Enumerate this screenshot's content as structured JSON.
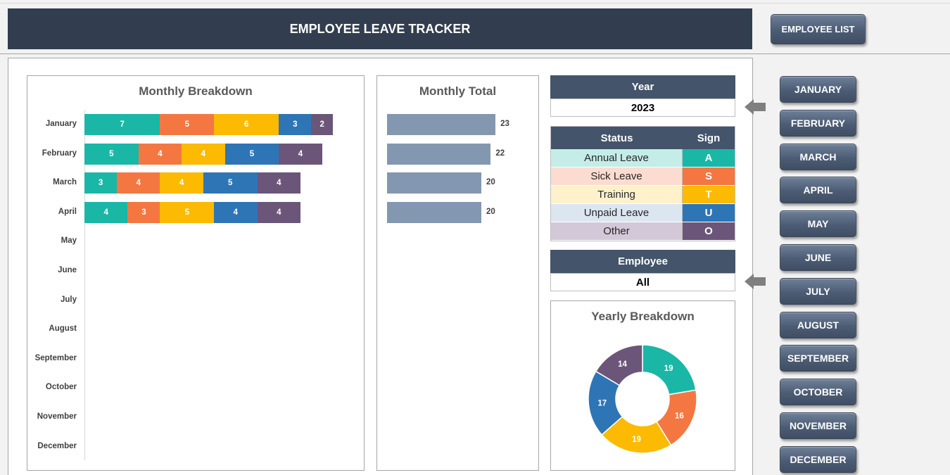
{
  "title": "EMPLOYEE LEAVE TRACKER",
  "employee_list_button": "EMPLOYEE LIST",
  "month_buttons": [
    "JANUARY",
    "FEBRUARY",
    "MARCH",
    "APRIL",
    "MAY",
    "JUNE",
    "JULY",
    "AUGUST",
    "SEPTEMBER",
    "OCTOBER",
    "NOVEMBER",
    "DECEMBER"
  ],
  "colors": {
    "header": "#323e4f",
    "annual": "#1ab7a6",
    "sick": "#f47742",
    "training": "#fcba03",
    "unpaid": "#2e75b6",
    "other": "#6b5679",
    "total_bar": "#8497b0"
  },
  "monthly_breakdown": {
    "title": "Monthly Breakdown",
    "months": [
      "January",
      "February",
      "March",
      "April",
      "May",
      "June",
      "July",
      "August",
      "September",
      "October",
      "November",
      "December"
    ],
    "series": [
      {
        "key": "annual",
        "values": [
          7,
          5,
          3,
          4,
          null,
          null,
          null,
          null,
          null,
          null,
          null,
          null
        ]
      },
      {
        "key": "sick",
        "values": [
          5,
          4,
          4,
          3,
          null,
          null,
          null,
          null,
          null,
          null,
          null,
          null
        ]
      },
      {
        "key": "training",
        "values": [
          6,
          4,
          4,
          5,
          null,
          null,
          null,
          null,
          null,
          null,
          null,
          null
        ]
      },
      {
        "key": "unpaid",
        "values": [
          3,
          5,
          5,
          4,
          null,
          null,
          null,
          null,
          null,
          null,
          null,
          null
        ]
      },
      {
        "key": "other",
        "values": [
          2,
          4,
          4,
          4,
          null,
          null,
          null,
          null,
          null,
          null,
          null,
          null
        ]
      }
    ]
  },
  "monthly_total": {
    "title": "Monthly Total",
    "values": [
      23,
      22,
      20,
      20,
      null,
      null,
      null,
      null,
      null,
      null,
      null,
      null
    ]
  },
  "year": {
    "label": "Year",
    "value": "2023"
  },
  "status_table": {
    "status_header": "Status",
    "sign_header": "Sign",
    "rows": [
      {
        "name": "Annual Leave",
        "sign": "A",
        "key": "annual",
        "bg": "#c4ede8"
      },
      {
        "name": "Sick Leave",
        "sign": "S",
        "key": "sick",
        "bg": "#fcdcd0"
      },
      {
        "name": "Training",
        "sign": "T",
        "key": "training",
        "bg": "#fef1cc"
      },
      {
        "name": "Unpaid Leave",
        "sign": "U",
        "key": "unpaid",
        "bg": "#dce6f1"
      },
      {
        "name": "Other",
        "sign": "O",
        "key": "other",
        "bg": "#d3c8d8"
      }
    ]
  },
  "employee": {
    "label": "Employee",
    "value": "All"
  },
  "yearly_breakdown": {
    "title": "Yearly Breakdown",
    "slices": [
      {
        "key": "annual",
        "value": 19
      },
      {
        "key": "sick",
        "value": 16
      },
      {
        "key": "training",
        "value": 19
      },
      {
        "key": "unpaid",
        "value": 17
      },
      {
        "key": "other",
        "value": 14
      }
    ]
  }
}
